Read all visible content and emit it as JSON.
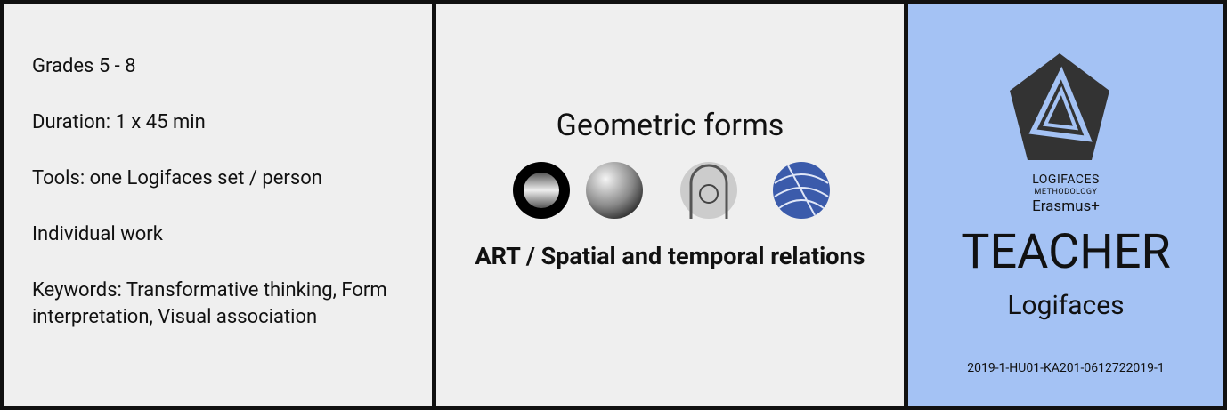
{
  "left": {
    "items": [
      "Grades 5 - 8",
      "Duration: 1 x 45 min",
      "Tools: one Logifaces set / person",
      "Individual work",
      "Keywords: Transformative thinking, Form interpretation, Visual association"
    ]
  },
  "middle": {
    "title": "Geometric forms",
    "subtitle": "ART / Spatial and temporal relations"
  },
  "right": {
    "logo_name": "LOGIFACES",
    "logo_tagline": "METHODOLOGY",
    "program": "Erasmus+",
    "role": "TEACHER",
    "product": "Logifaces",
    "project_code": "2019-1-HU01-KA201-0612722019-1"
  }
}
